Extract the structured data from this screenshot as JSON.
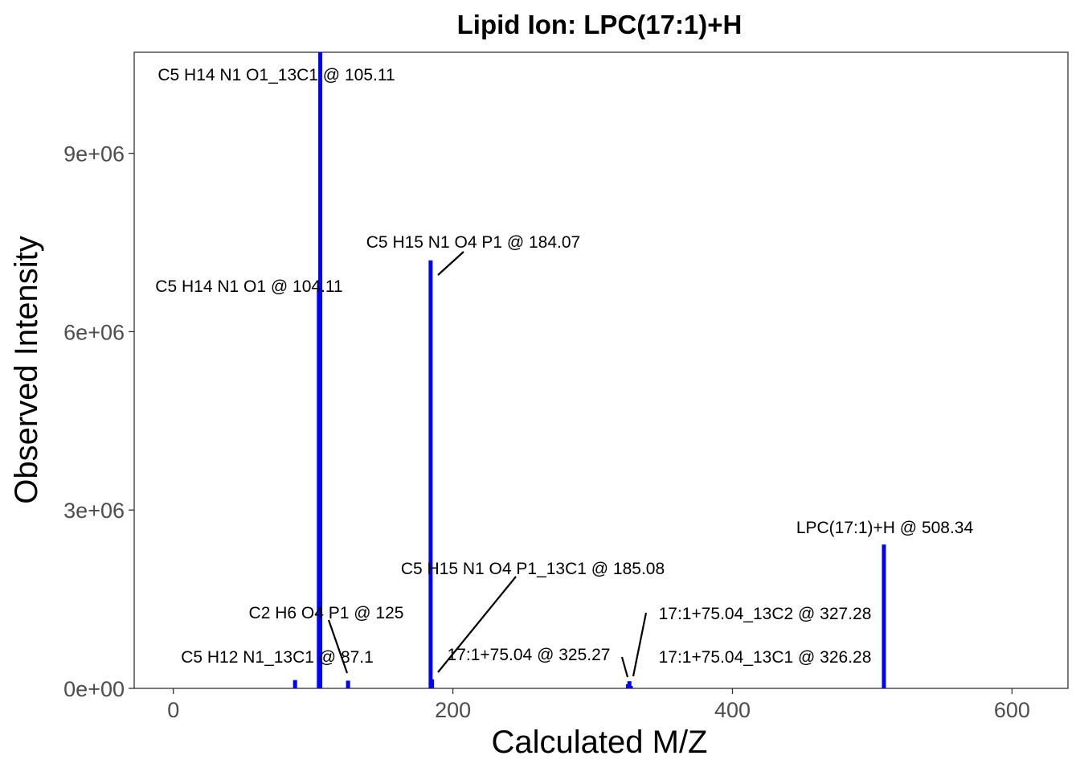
{
  "chart_data": {
    "type": "bar",
    "title": "Lipid Ion: LPC(17:1)+H",
    "xlabel": "Calculated M/Z",
    "ylabel": "Observed Intensity",
    "xlim": [
      -28,
      640
    ],
    "ylim": [
      0,
      10700000
    ],
    "x_ticks": [
      0,
      200,
      400,
      600
    ],
    "x_tick_labels": [
      "0",
      "200",
      "400",
      "600"
    ],
    "y_ticks": [
      0,
      3000000,
      6000000,
      9000000
    ],
    "y_tick_labels": [
      "0e+00",
      "3e+06",
      "6e+06",
      "9e+06"
    ],
    "grid": false,
    "legend": "none",
    "bar_color": "#0000ff",
    "peaks": [
      {
        "mz": 87.1,
        "intensity": 140000,
        "label": "C5 H12 N1_13C1 @ 87.1"
      },
      {
        "mz": 104.11,
        "intensity": 6700000,
        "label": "C5 H14 N1 O1 @ 104.11"
      },
      {
        "mz": 105.11,
        "intensity": 10700000,
        "label": "C5 H14 N1 O1_13C1 @ 105.11"
      },
      {
        "mz": 125,
        "intensity": 130000,
        "label": "C2 H6 O4 P1 @ 125"
      },
      {
        "mz": 184.07,
        "intensity": 7200000,
        "label": "C5 H15 N1 O4 P1 @ 184.07"
      },
      {
        "mz": 185.08,
        "intensity": 150000,
        "label": "C5 H15 N1 O4 P1_13C1 @ 185.08"
      },
      {
        "mz": 325.27,
        "intensity": 70000,
        "label": "17:1+75.04 @ 325.27"
      },
      {
        "mz": 326.28,
        "intensity": 120000,
        "label": "17:1+75.04_13C1 @ 326.28"
      },
      {
        "mz": 327.28,
        "intensity": 40000,
        "label": "17:1+75.04_13C2 @ 327.28"
      },
      {
        "mz": 508.34,
        "intensity": 2420000,
        "label": "LPC(17:1)+H @ 508.34"
      }
    ]
  }
}
